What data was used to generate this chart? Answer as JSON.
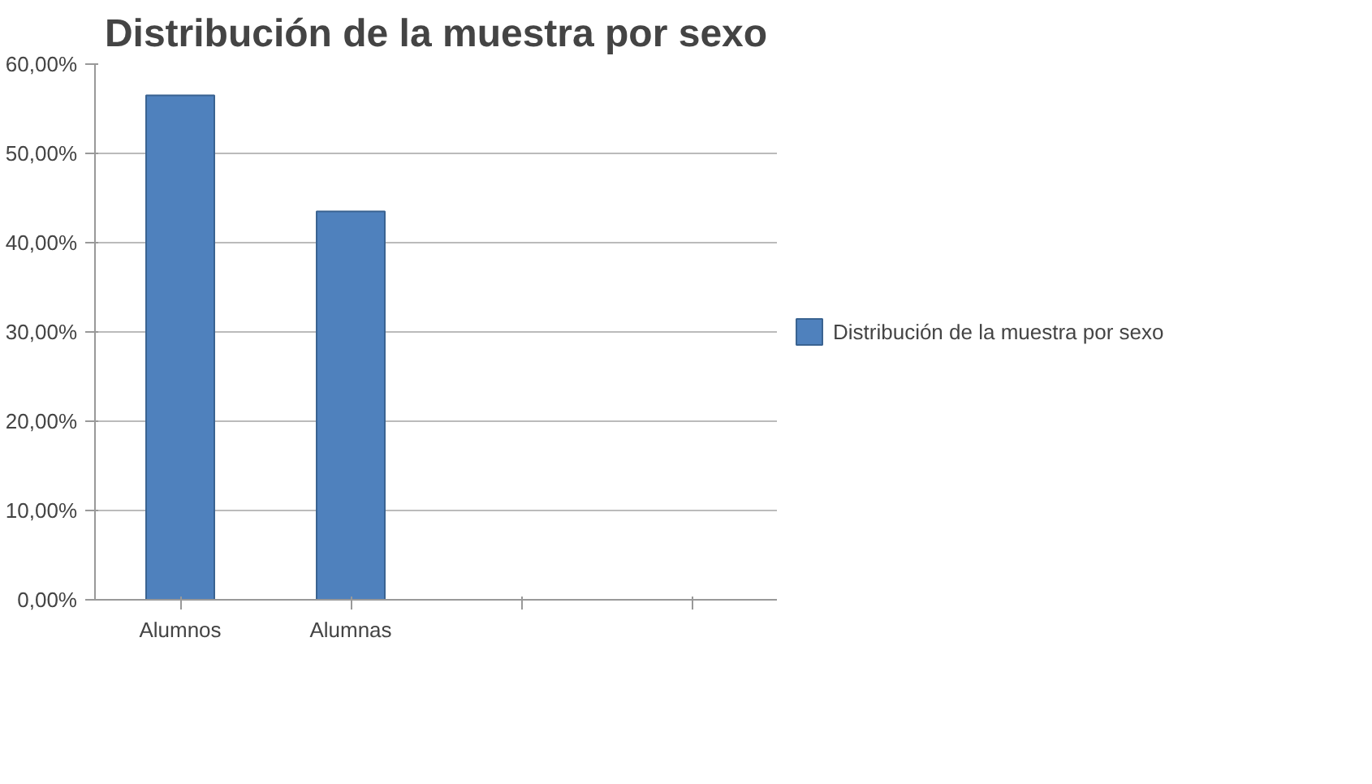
{
  "chart_data": {
    "type": "bar",
    "title": "Distribución de la muestra por sexo",
    "categories": [
      "Alumnos",
      "Alumnas",
      null,
      null
    ],
    "series": [
      {
        "name": "Distribución de la muestra por sexo",
        "color": "#4f81bd",
        "values": [
          56.5,
          43.5,
          null,
          null
        ]
      }
    ],
    "ylim": [
      0,
      60
    ],
    "yticks": [
      {
        "value": 0,
        "label": "0,00%"
      },
      {
        "value": 10,
        "label": "10,00%"
      },
      {
        "value": 20,
        "label": "20,00%"
      },
      {
        "value": 30,
        "label": "30,00%"
      },
      {
        "value": 40,
        "label": "40,00%"
      },
      {
        "value": 50,
        "label": "50,00%"
      },
      {
        "value": 60,
        "label": "60,00%"
      }
    ],
    "grid": "y",
    "legend": "right"
  }
}
